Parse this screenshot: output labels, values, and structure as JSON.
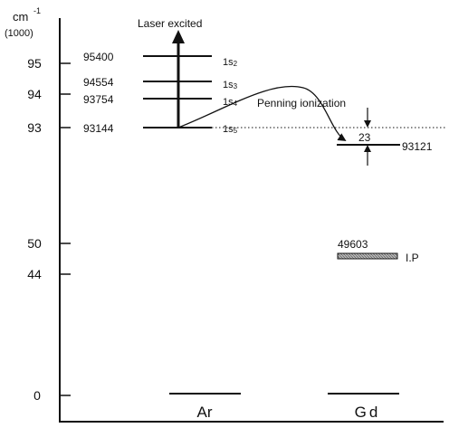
{
  "axis": {
    "unit": "cm",
    "unit_exp": "-1",
    "scale_note": "(1000)",
    "ticks": [
      {
        "label": "95",
        "value": 95
      },
      {
        "label": "94",
        "value": 94
      },
      {
        "label": "93",
        "value": 93
      },
      {
        "label": "50",
        "value": 50
      },
      {
        "label": "44",
        "value": 44
      },
      {
        "label": "0",
        "value": 0
      }
    ]
  },
  "ar": {
    "name": "Ar",
    "levels": [
      {
        "value": "95400",
        "label": "1s",
        "sub": "2"
      },
      {
        "value": "94554",
        "label": "1s",
        "sub": "3"
      },
      {
        "value": "93754",
        "label": "1s",
        "sub": "4"
      },
      {
        "value": "93144",
        "label": "1s",
        "sub": "5"
      }
    ],
    "excitation_label": "Laser excited"
  },
  "gd": {
    "name": "Gd",
    "level": "93121",
    "gap": "23",
    "ip_value": "49603",
    "ip_label": "I.P"
  },
  "transfer_label": "Penning ionization"
}
